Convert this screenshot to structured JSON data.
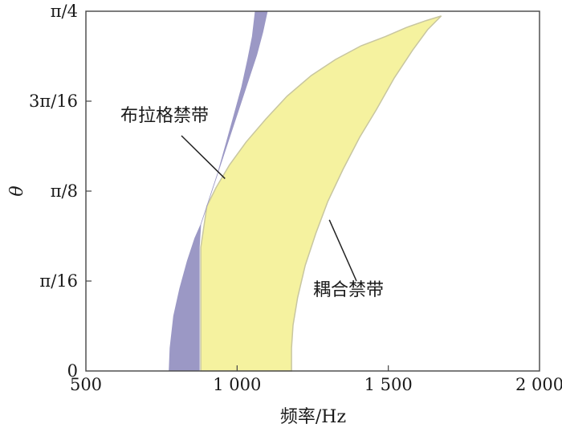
{
  "chart_data": {
    "type": "area",
    "xlabel": "频率/Hz",
    "ylabel": "θ",
    "xlim": [
      500,
      2000
    ],
    "ylim": [
      0,
      0.7854
    ],
    "x_ticks": [
      500,
      1000,
      1500,
      2000
    ],
    "x_tick_labels": [
      "500",
      "1 000",
      "1 500",
      "2 000"
    ],
    "y_ticks": [
      0,
      0.19635,
      0.3927,
      0.58905,
      0.7854
    ],
    "y_tick_labels": [
      "0",
      "π/16",
      "π/8",
      "3π/16",
      "π/4"
    ],
    "grid": false,
    "colors": {
      "bragg": "#9b98c5",
      "coupling": "#f5f29f",
      "coupling_edge": "#c8c6a0"
    },
    "series": [
      {
        "label": "布拉格禁带",
        "lower_edge": [
          [
            775,
            0
          ],
          [
            778,
            0.05
          ],
          [
            790,
            0.12
          ],
          [
            810,
            0.18
          ],
          [
            835,
            0.24
          ],
          [
            860,
            0.29
          ],
          [
            880,
            0.32
          ],
          [
            905,
            0.37
          ],
          [
            935,
            0.43
          ],
          [
            965,
            0.5
          ],
          [
            990,
            0.56
          ],
          [
            1015,
            0.62
          ],
          [
            1035,
            0.68
          ],
          [
            1050,
            0.73
          ],
          [
            1060,
            0.7854
          ]
        ],
        "upper_edge": [
          [
            875,
            0
          ],
          [
            875,
            0.1
          ],
          [
            875,
            0.2
          ],
          [
            875,
            0.27
          ],
          [
            880,
            0.32
          ],
          [
            895,
            0.35
          ],
          [
            920,
            0.4
          ],
          [
            950,
            0.46
          ],
          [
            980,
            0.52
          ],
          [
            1010,
            0.58
          ],
          [
            1040,
            0.64
          ],
          [
            1065,
            0.69
          ],
          [
            1085,
            0.74
          ],
          [
            1100,
            0.7854
          ]
        ]
      },
      {
        "label": "耦合禁带",
        "lower_edge": [
          [
            880,
            0
          ],
          [
            880,
            0.1
          ],
          [
            880,
            0.2
          ],
          [
            880,
            0.27
          ],
          [
            900,
            0.36
          ],
          [
            930,
            0.4
          ],
          [
            975,
            0.45
          ],
          [
            1030,
            0.5
          ],
          [
            1095,
            0.55
          ],
          [
            1165,
            0.6
          ],
          [
            1245,
            0.645
          ],
          [
            1325,
            0.68
          ],
          [
            1410,
            0.71
          ],
          [
            1490,
            0.73
          ],
          [
            1560,
            0.75
          ],
          [
            1625,
            0.765
          ],
          [
            1675,
            0.775
          ]
        ],
        "upper_edge": [
          [
            1180,
            0
          ],
          [
            1180,
            0.05
          ],
          [
            1185,
            0.1
          ],
          [
            1200,
            0.16
          ],
          [
            1225,
            0.23
          ],
          [
            1260,
            0.3
          ],
          [
            1300,
            0.37
          ],
          [
            1350,
            0.44
          ],
          [
            1405,
            0.51
          ],
          [
            1460,
            0.57
          ],
          [
            1520,
            0.64
          ],
          [
            1580,
            0.7
          ],
          [
            1630,
            0.745
          ],
          [
            1675,
            0.775
          ]
        ]
      }
    ],
    "annotations": [
      {
        "text": "布拉格禁带",
        "points_to": [
          960,
          0.42
        ]
      },
      {
        "text": "耦合禁带",
        "points_to": [
          1305,
          0.33
        ]
      }
    ]
  }
}
